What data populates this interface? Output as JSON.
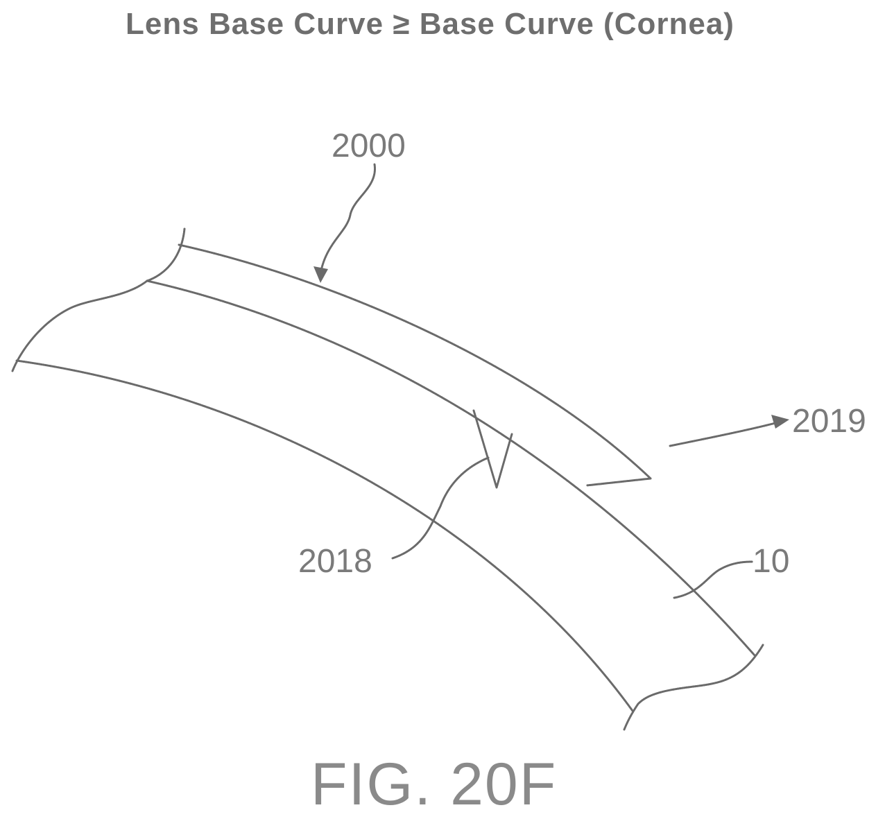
{
  "figure": {
    "title": "Lens Base Curve ≥ Base Curve (Cornea)",
    "caption": "FIG. 20F",
    "reference_labels": {
      "lens": "2000",
      "gap_region": "2019",
      "wedge_feature": "2018",
      "cornea": "10"
    },
    "line_color": "#6a6a6a",
    "label_color": "#7a7a7a"
  }
}
